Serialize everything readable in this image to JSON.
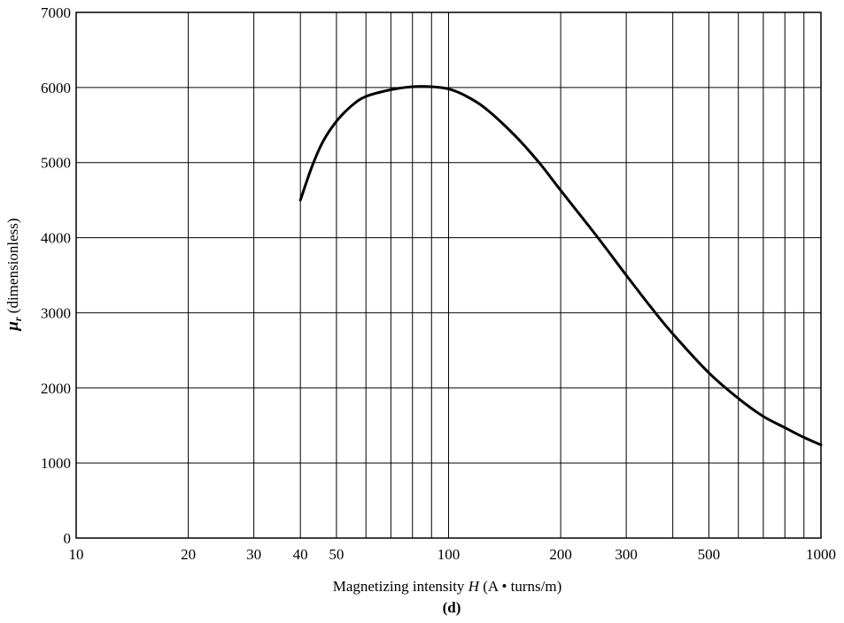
{
  "chart_data": {
    "type": "line",
    "title": "",
    "xlabel": {
      "prefix": "Magnetizing intensity ",
      "variable": "H",
      "suffix": " (A • turns/m)"
    },
    "ylabel": {
      "symbol": "μ",
      "subscript": "r",
      "suffix": " (dimensionless)"
    },
    "caption": "(d)",
    "x_scale": "log",
    "xlim": [
      10,
      1000
    ],
    "ylim": [
      0,
      7000
    ],
    "grid": true,
    "x_ticks": [
      {
        "value": 10,
        "label": "10"
      },
      {
        "value": 20,
        "label": "20"
      },
      {
        "value": 30,
        "label": "30"
      },
      {
        "value": 40,
        "label": "40"
      },
      {
        "value": 50,
        "label": "50"
      },
      {
        "value": 100,
        "label": "100"
      },
      {
        "value": 200,
        "label": "200"
      },
      {
        "value": 300,
        "label": "300"
      },
      {
        "value": 500,
        "label": "500"
      },
      {
        "value": 1000,
        "label": "1000"
      }
    ],
    "x_gridlines": [
      20,
      30,
      40,
      50,
      60,
      70,
      80,
      90,
      100,
      200,
      300,
      400,
      500,
      600,
      700,
      800,
      900
    ],
    "y_ticks": [
      {
        "value": 0,
        "label": "0"
      },
      {
        "value": 1000,
        "label": "1000"
      },
      {
        "value": 2000,
        "label": "2000"
      },
      {
        "value": 3000,
        "label": "3000"
      },
      {
        "value": 4000,
        "label": "4000"
      },
      {
        "value": 5000,
        "label": "5000"
      },
      {
        "value": 6000,
        "label": "6000"
      },
      {
        "value": 7000,
        "label": "7000"
      }
    ],
    "series": [
      {
        "color": "#000000",
        "points": [
          [
            40,
            4500
          ],
          [
            43,
            4950
          ],
          [
            46,
            5280
          ],
          [
            50,
            5550
          ],
          [
            55,
            5760
          ],
          [
            60,
            5880
          ],
          [
            70,
            5970
          ],
          [
            80,
            6010
          ],
          [
            90,
            6010
          ],
          [
            100,
            5980
          ],
          [
            110,
            5900
          ],
          [
            125,
            5730
          ],
          [
            150,
            5370
          ],
          [
            175,
            5000
          ],
          [
            200,
            4630
          ],
          [
            250,
            4020
          ],
          [
            300,
            3500
          ],
          [
            350,
            3070
          ],
          [
            400,
            2720
          ],
          [
            500,
            2200
          ],
          [
            600,
            1860
          ],
          [
            700,
            1620
          ],
          [
            800,
            1470
          ],
          [
            900,
            1340
          ],
          [
            1000,
            1240
          ]
        ]
      }
    ]
  }
}
